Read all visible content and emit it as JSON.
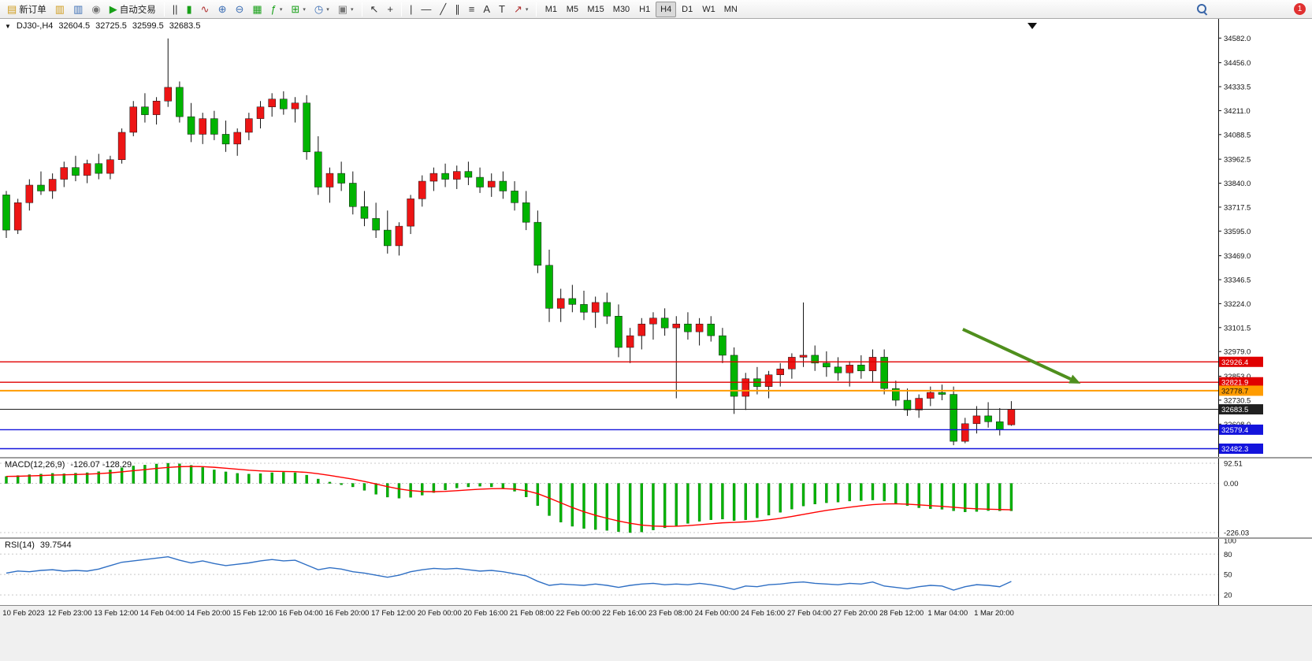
{
  "toolbar": {
    "new_order_label": "新订单",
    "autotrading_label": "自动交易",
    "timeframes": [
      "M1",
      "M5",
      "M15",
      "M30",
      "H1",
      "H4",
      "D1",
      "W1",
      "MN"
    ],
    "active_timeframe": "H4",
    "notification_count": "1"
  },
  "icons": {
    "new_order": "▤",
    "market_watch": "▥",
    "data_window": "▥",
    "navigator": "◉",
    "autotrading_play": "▶",
    "bar_chart": "||",
    "candlestick": "▮",
    "line_chart": "∿",
    "zoom_in": "⊕",
    "zoom_out": "⊖",
    "grid": "▦",
    "indicators": "ƒ",
    "new_chart": "⊞",
    "periods_clock": "◷",
    "template": "▣",
    "cursor": "↖",
    "crosshair": "+",
    "vline": "|",
    "hline": "—",
    "trendline": "╱",
    "channel": "∥",
    "fibonacci": "≡",
    "text": "A",
    "text_label": "T",
    "arrows": "↗",
    "dropdown": "▾",
    "collapse": "▼"
  },
  "chart_header": {
    "symbol_period": "DJ30-,H4",
    "open": "32604.5",
    "high": "32725.5",
    "low": "32599.5",
    "close": "32683.5"
  },
  "indicators": {
    "macd_label": "MACD(12,26,9)",
    "macd_values": "-126.07 -128.29",
    "rsi_label": "RSI(14)",
    "rsi_value": "39.7544"
  },
  "time_axis": {
    "labels": [
      "10 Feb 2023",
      "12 Feb 23:00",
      "13 Feb 12:00",
      "14 Feb 04:00",
      "14 Feb 20:00",
      "15 Feb 12:00",
      "16 Feb 04:00",
      "16 Feb 20:00",
      "17 Feb 12:00",
      "20 Feb 00:00",
      "20 Feb 16:00",
      "21 Feb 08:00",
      "22 Feb 00:00",
      "22 Feb 16:00",
      "23 Feb 08:00",
      "24 Feb 00:00",
      "24 Feb 16:00",
      "27 Feb 04:00",
      "27 Feb 20:00",
      "28 Feb 12:00",
      "1 Mar 04:00",
      "1 Mar 20:00"
    ]
  },
  "chart_data": [
    {
      "type": "candlestick",
      "title": "DJ30- H4",
      "ylim": [
        32440,
        34680
      ],
      "colors": {
        "up": "#ed1515",
        "down": "#00b400"
      },
      "y_axis_labels": [
        34582.0,
        34456.0,
        34333.5,
        34211.0,
        34088.5,
        33962.5,
        33840.0,
        33717.5,
        33595.0,
        33469.0,
        33346.5,
        33224.0,
        33101.5,
        32979.0,
        32853.0,
        32730.5,
        32608.0
      ],
      "hlines": [
        {
          "price": 32926.4,
          "color": "#e00000",
          "width": 1.4,
          "text_color": "#fff"
        },
        {
          "price": 32821.9,
          "color": "#e00000",
          "width": 1.4,
          "text_color": "#fff"
        },
        {
          "price": 32778.7,
          "color": "#ff9c00",
          "width": 2,
          "text_color": "#111"
        },
        {
          "price": 32683.5,
          "color": "#202020",
          "width": 1,
          "text_color": "#fff"
        },
        {
          "price": 32579.4,
          "color": "#1414dc",
          "width": 1.4,
          "text_color": "#fff"
        },
        {
          "price": 32482.3,
          "color": "#1414dc",
          "width": 1.4,
          "text_color": "#fff"
        }
      ],
      "arrow": {
        "bar1": 82.8,
        "price1": 33093,
        "bar2": 93,
        "price2": 32815,
        "color": "#4f8f1d"
      },
      "ohlc": [
        [
          33780,
          33800,
          33560,
          33600
        ],
        [
          33600,
          33760,
          33580,
          33740
        ],
        [
          33740,
          33860,
          33700,
          33830
        ],
        [
          33830,
          33900,
          33780,
          33800
        ],
        [
          33800,
          33890,
          33760,
          33860
        ],
        [
          33860,
          33950,
          33820,
          33920
        ],
        [
          33920,
          33980,
          33850,
          33880
        ],
        [
          33880,
          33960,
          33840,
          33940
        ],
        [
          33940,
          33990,
          33860,
          33890
        ],
        [
          33890,
          33980,
          33860,
          33960
        ],
        [
          33960,
          34120,
          33940,
          34100
        ],
        [
          34100,
          34260,
          34080,
          34230
        ],
        [
          34230,
          34300,
          34150,
          34190
        ],
        [
          34190,
          34280,
          34140,
          34260
        ],
        [
          34260,
          34580,
          34230,
          34330
        ],
        [
          34330,
          34360,
          34150,
          34180
        ],
        [
          34180,
          34250,
          34050,
          34090
        ],
        [
          34090,
          34200,
          34040,
          34170
        ],
        [
          34170,
          34210,
          34060,
          34090
        ],
        [
          34090,
          34160,
          34000,
          34040
        ],
        [
          34040,
          34120,
          33980,
          34100
        ],
        [
          34100,
          34200,
          34060,
          34170
        ],
        [
          34170,
          34260,
          34120,
          34230
        ],
        [
          34230,
          34300,
          34180,
          34270
        ],
        [
          34270,
          34310,
          34190,
          34220
        ],
        [
          34220,
          34280,
          34150,
          34250
        ],
        [
          34250,
          34290,
          33960,
          34000
        ],
        [
          34000,
          34080,
          33780,
          33820
        ],
        [
          33820,
          33920,
          33740,
          33890
        ],
        [
          33890,
          33950,
          33800,
          33840
        ],
        [
          33840,
          33900,
          33680,
          33720
        ],
        [
          33720,
          33800,
          33620,
          33660
        ],
        [
          33660,
          33740,
          33560,
          33600
        ],
        [
          33600,
          33700,
          33480,
          33520
        ],
        [
          33520,
          33640,
          33470,
          33620
        ],
        [
          33620,
          33780,
          33580,
          33760
        ],
        [
          33760,
          33880,
          33720,
          33850
        ],
        [
          33850,
          33920,
          33800,
          33890
        ],
        [
          33890,
          33940,
          33820,
          33860
        ],
        [
          33860,
          33930,
          33810,
          33900
        ],
        [
          33900,
          33950,
          33830,
          33870
        ],
        [
          33870,
          33920,
          33790,
          33820
        ],
        [
          33820,
          33890,
          33770,
          33850
        ],
        [
          33850,
          33900,
          33760,
          33800
        ],
        [
          33800,
          33850,
          33700,
          33740
        ],
        [
          33740,
          33800,
          33600,
          33640
        ],
        [
          33640,
          33700,
          33380,
          33420
        ],
        [
          33420,
          33500,
          33130,
          33200
        ],
        [
          33200,
          33300,
          33130,
          33250
        ],
        [
          33250,
          33320,
          33180,
          33220
        ],
        [
          33220,
          33290,
          33140,
          33180
        ],
        [
          33180,
          33260,
          33100,
          33230
        ],
        [
          33230,
          33280,
          33120,
          33160
        ],
        [
          33160,
          33220,
          32950,
          33000
        ],
        [
          33000,
          33100,
          32920,
          33060
        ],
        [
          33060,
          33150,
          32990,
          33120
        ],
        [
          33120,
          33180,
          33040,
          33150
        ],
        [
          33150,
          33200,
          33060,
          33100
        ],
        [
          33100,
          33160,
          32740,
          33120
        ],
        [
          33120,
          33180,
          33040,
          33080
        ],
        [
          33080,
          33150,
          33010,
          33120
        ],
        [
          33120,
          33160,
          33030,
          33060
        ],
        [
          33060,
          33100,
          32920,
          32960
        ],
        [
          32960,
          33000,
          32660,
          32750
        ],
        [
          32750,
          32870,
          32680,
          32840
        ],
        [
          32840,
          32900,
          32760,
          32800
        ],
        [
          32800,
          32880,
          32740,
          32860
        ],
        [
          32860,
          32920,
          32800,
          32890
        ],
        [
          32890,
          32970,
          32840,
          32950
        ],
        [
          32950,
          33230,
          32900,
          32960
        ],
        [
          32960,
          33010,
          32880,
          32920
        ],
        [
          32920,
          32980,
          32850,
          32900
        ],
        [
          32900,
          32950,
          32830,
          32870
        ],
        [
          32870,
          32930,
          32800,
          32910
        ],
        [
          32910,
          32960,
          32840,
          32880
        ],
        [
          32880,
          32990,
          32820,
          32950
        ],
        [
          32950,
          32990,
          32760,
          32790
        ],
        [
          32790,
          32830,
          32700,
          32730
        ],
        [
          32730,
          32790,
          32650,
          32680
        ],
        [
          32680,
          32760,
          32640,
          32740
        ],
        [
          32740,
          32800,
          32700,
          32770
        ],
        [
          32770,
          32810,
          32730,
          32760
        ],
        [
          32760,
          32800,
          32500,
          32520
        ],
        [
          32520,
          32640,
          32510,
          32610
        ],
        [
          32610,
          32700,
          32560,
          32650
        ],
        [
          32650,
          32720,
          32590,
          32620
        ],
        [
          32620,
          32690,
          32550,
          32580
        ],
        [
          32604.5,
          32725.5,
          32599.5,
          32683.5
        ]
      ]
    },
    {
      "type": "bar+line",
      "title": "MACD(12,26,9)",
      "ylim": [
        -226.03,
        92.51
      ],
      "hist_color": "#00b400",
      "signal_color": "#ff0000",
      "signal_period": 9,
      "y_axis_labels": [
        {
          "v": 92.51,
          "t": "92.51",
          "line": true
        },
        {
          "v": 0,
          "t": "0.00",
          "line": true
        },
        {
          "v": -226.03,
          "t": "-226.03",
          "line": true
        }
      ],
      "histogram": [
        32,
        36,
        40,
        43,
        46,
        44,
        47,
        49,
        54,
        62,
        72,
        80,
        84,
        89,
        92.5,
        90,
        83,
        73,
        62,
        53,
        46,
        43,
        45,
        49,
        51,
        49,
        38,
        20,
        6,
        -6,
        -16,
        -32,
        -50,
        -63,
        -68,
        -64,
        -54,
        -42,
        -30,
        -21,
        -16,
        -13,
        -16,
        -22,
        -36,
        -62,
        -102,
        -148,
        -178,
        -197,
        -207,
        -212,
        -216,
        -222,
        -226,
        -223,
        -214,
        -204,
        -194,
        -184,
        -174,
        -167,
        -164,
        -171,
        -167,
        -158,
        -146,
        -133,
        -118,
        -104,
        -95,
        -89,
        -86,
        -81,
        -79,
        -76,
        -81,
        -91,
        -102,
        -112,
        -116,
        -119,
        -126,
        -131,
        -129,
        -125,
        -126,
        -126.07
      ]
    },
    {
      "type": "line",
      "title": "RSI(14)",
      "ylim": [
        12,
        100
      ],
      "color": "#2f6fc4",
      "y_axis_labels": [
        {
          "v": 100,
          "t": "100",
          "line": false
        },
        {
          "v": 80,
          "t": "80",
          "line": true
        },
        {
          "v": 50,
          "t": "50",
          "line": true
        },
        {
          "v": 20,
          "t": "20",
          "line": true
        }
      ],
      "values": [
        52,
        55,
        54,
        56,
        57,
        55,
        56,
        55,
        58,
        63,
        68,
        70,
        72,
        74,
        76,
        71,
        67,
        70,
        66,
        63,
        65,
        67,
        70,
        72,
        70,
        71,
        64,
        57,
        60,
        58,
        54,
        52,
        49,
        46,
        49,
        54,
        57,
        59,
        58,
        59,
        57,
        55,
        56,
        54,
        51,
        48,
        40,
        34,
        36,
        35,
        34,
        36,
        34,
        31,
        34,
        36,
        37,
        35,
        36,
        35,
        37,
        35,
        32,
        28,
        33,
        32,
        35,
        36,
        38,
        39,
        37,
        36,
        35,
        37,
        36,
        39,
        33,
        31,
        29,
        32,
        34,
        33,
        27,
        32,
        35,
        34,
        32,
        39.75
      ]
    }
  ]
}
